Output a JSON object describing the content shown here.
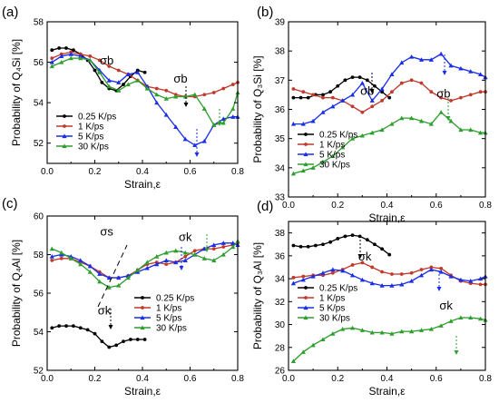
{
  "chart_data": [
    {
      "type": "line",
      "panel_label": "(a)",
      "xlabel": "Strain,ε",
      "ylabel": "Probability of Q₄Si [%]",
      "xlim": [
        0,
        0.8
      ],
      "ylim": [
        51,
        58
      ],
      "xticks": [
        0.0,
        0.2,
        0.4,
        0.6,
        0.8
      ],
      "xtick_labels": [
        "0.0",
        "0.2",
        "0.4",
        "0.6",
        "0.8"
      ],
      "yticks": [
        52,
        54,
        56,
        58
      ],
      "ytick_labels": [
        "52",
        "54",
        "56",
        "58"
      ],
      "legend_position": "bottom-left",
      "series": [
        {
          "name": "0.25 K/ps",
          "color": "#000000",
          "marker": "circle",
          "x": [
            0.02,
            0.05,
            0.08,
            0.11,
            0.14,
            0.17,
            0.2,
            0.23,
            0.26,
            0.29,
            0.32,
            0.35,
            0.38,
            0.41
          ],
          "y": [
            56.6,
            56.7,
            56.7,
            56.6,
            56.4,
            56.1,
            55.6,
            55.0,
            54.7,
            54.6,
            54.9,
            55.3,
            55.6,
            55.5
          ]
        },
        {
          "name": "1 K/ps",
          "color": "#c0392b",
          "marker": "circle",
          "x": [
            0.02,
            0.06,
            0.1,
            0.14,
            0.18,
            0.22,
            0.26,
            0.3,
            0.34,
            0.38,
            0.42,
            0.46,
            0.5,
            0.54,
            0.58,
            0.62,
            0.66,
            0.7,
            0.74,
            0.78,
            0.8
          ],
          "y": [
            56.2,
            56.4,
            56.5,
            56.4,
            56.3,
            56.1,
            55.8,
            55.6,
            55.4,
            55.1,
            54.8,
            54.7,
            54.6,
            54.4,
            54.3,
            54.3,
            54.4,
            54.5,
            54.7,
            54.9,
            55.0
          ]
        },
        {
          "name": "5 K/ps",
          "color": "#1a2ee8",
          "marker": "triangle",
          "x": [
            0.02,
            0.06,
            0.1,
            0.14,
            0.18,
            0.22,
            0.26,
            0.3,
            0.34,
            0.38,
            0.42,
            0.46,
            0.5,
            0.54,
            0.58,
            0.62,
            0.66,
            0.7,
            0.74,
            0.78,
            0.8
          ],
          "y": [
            56.0,
            56.3,
            56.4,
            56.3,
            56.1,
            55.6,
            55.1,
            55.0,
            55.4,
            55.5,
            54.8,
            54.0,
            53.4,
            52.8,
            52.2,
            51.9,
            52.1,
            52.9,
            53.2,
            53.3,
            53.3
          ]
        },
        {
          "name": "30 K/ps",
          "color": "#2e9e2e",
          "marker": "triangle",
          "x": [
            0.02,
            0.06,
            0.1,
            0.14,
            0.18,
            0.22,
            0.26,
            0.3,
            0.34,
            0.38,
            0.42,
            0.46,
            0.5,
            0.54,
            0.58,
            0.62,
            0.66,
            0.7,
            0.74,
            0.78,
            0.8
          ],
          "y": [
            55.8,
            56.0,
            56.2,
            56.2,
            56.1,
            55.5,
            54.8,
            54.6,
            54.9,
            55.1,
            54.7,
            54.4,
            54.2,
            54.3,
            54.3,
            54.4,
            53.7,
            52.9,
            53.0,
            53.7,
            54.5
          ]
        }
      ],
      "annotations": [
        {
          "text": "σb",
          "x": 0.25,
          "y": 55.9
        },
        {
          "text": "σb",
          "x": 0.56,
          "y": 55.0
        }
      ]
    },
    {
      "type": "line",
      "panel_label": "(b)",
      "xlabel": "Strain,ε",
      "ylabel": "Probability of Q₃Si [%]",
      "xlim": [
        0,
        0.8
      ],
      "ylim": [
        33,
        39
      ],
      "xticks": [
        0.0,
        0.2,
        0.4,
        0.6,
        0.8
      ],
      "xtick_labels": [
        "0.0",
        "0.2",
        "0.4",
        "0.6",
        "0.8"
      ],
      "yticks": [
        33,
        34,
        35,
        36,
        37,
        38,
        39
      ],
      "ytick_labels": [
        "33",
        "34",
        "35",
        "36",
        "37",
        "38",
        "39"
      ],
      "legend_position": "bottom-left",
      "series": [
        {
          "name": "0.25 K/ps",
          "color": "#000000",
          "marker": "circle",
          "x": [
            0.02,
            0.05,
            0.08,
            0.11,
            0.14,
            0.17,
            0.2,
            0.23,
            0.26,
            0.29,
            0.32,
            0.35,
            0.38,
            0.41
          ],
          "y": [
            36.4,
            36.4,
            36.4,
            36.5,
            36.5,
            36.6,
            36.8,
            37.0,
            37.1,
            37.1,
            37.0,
            36.8,
            36.6,
            36.4
          ]
        },
        {
          "name": "1 K/ps",
          "color": "#c0392b",
          "marker": "circle",
          "x": [
            0.02,
            0.06,
            0.1,
            0.14,
            0.18,
            0.22,
            0.26,
            0.3,
            0.34,
            0.38,
            0.42,
            0.46,
            0.5,
            0.54,
            0.58,
            0.62,
            0.66,
            0.7,
            0.74,
            0.78,
            0.8
          ],
          "y": [
            36.7,
            36.6,
            36.5,
            36.4,
            36.4,
            36.3,
            36.1,
            35.9,
            36.1,
            36.3,
            36.6,
            36.9,
            37.0,
            36.9,
            36.6,
            36.4,
            36.3,
            36.4,
            36.5,
            36.6,
            36.6
          ]
        },
        {
          "name": "5 K/ps",
          "color": "#1a2ee8",
          "marker": "triangle",
          "x": [
            0.02,
            0.06,
            0.1,
            0.14,
            0.18,
            0.22,
            0.26,
            0.3,
            0.34,
            0.38,
            0.42,
            0.46,
            0.5,
            0.54,
            0.58,
            0.62,
            0.66,
            0.7,
            0.74,
            0.78,
            0.8
          ],
          "y": [
            35.5,
            35.5,
            35.6,
            35.9,
            36.1,
            36.3,
            36.5,
            36.9,
            36.3,
            36.7,
            37.2,
            37.6,
            37.8,
            37.7,
            37.7,
            37.9,
            37.5,
            37.4,
            37.3,
            37.2,
            37.1
          ]
        },
        {
          "name": "30 K/ps",
          "color": "#2e9e2e",
          "marker": "triangle",
          "x": [
            0.02,
            0.06,
            0.1,
            0.14,
            0.18,
            0.22,
            0.26,
            0.3,
            0.34,
            0.38,
            0.42,
            0.46,
            0.5,
            0.54,
            0.58,
            0.62,
            0.66,
            0.7,
            0.74,
            0.78,
            0.8
          ],
          "y": [
            33.8,
            33.9,
            34.0,
            34.2,
            34.4,
            34.7,
            35.0,
            35.1,
            35.2,
            35.3,
            35.5,
            35.7,
            35.7,
            35.6,
            35.5,
            35.9,
            35.6,
            35.3,
            35.3,
            35.2,
            35.2
          ]
        }
      ],
      "annotations": [
        {
          "text": "σb",
          "x": 0.32,
          "y": 36.5
        },
        {
          "text": "σb",
          "x": 0.63,
          "y": 36.4
        }
      ]
    },
    {
      "type": "line",
      "panel_label": "(c)",
      "xlabel": "Strain,ε",
      "ylabel": "Probability of Q₄Al [%]",
      "xlim": [
        0,
        0.8
      ],
      "ylim": [
        52,
        60
      ],
      "xticks": [
        0.0,
        0.2,
        0.4,
        0.6,
        0.8
      ],
      "xtick_labels": [
        "0.0",
        "0.2",
        "0.4",
        "0.6",
        "0.8"
      ],
      "yticks": [
        52,
        54,
        56,
        58,
        60
      ],
      "ytick_labels": [
        "52",
        "54",
        "56",
        "58",
        "60"
      ],
      "legend_position": "center-right",
      "series": [
        {
          "name": "0.25 K/ps",
          "color": "#000000",
          "marker": "circle",
          "x": [
            0.02,
            0.05,
            0.08,
            0.11,
            0.14,
            0.17,
            0.2,
            0.23,
            0.26,
            0.29,
            0.32,
            0.35,
            0.38,
            0.41
          ],
          "y": [
            54.2,
            54.3,
            54.3,
            54.3,
            54.2,
            54.1,
            53.9,
            53.5,
            53.2,
            53.3,
            53.5,
            53.6,
            53.6,
            53.6
          ]
        },
        {
          "name": "1 K/ps",
          "color": "#c0392b",
          "marker": "circle",
          "x": [
            0.02,
            0.06,
            0.1,
            0.14,
            0.18,
            0.22,
            0.26,
            0.3,
            0.34,
            0.38,
            0.42,
            0.46,
            0.5,
            0.54,
            0.58,
            0.62,
            0.66,
            0.7,
            0.74,
            0.78,
            0.8
          ],
          "y": [
            57.7,
            57.8,
            57.8,
            57.6,
            57.4,
            57.1,
            56.8,
            56.8,
            56.9,
            57.2,
            57.5,
            57.6,
            57.5,
            57.6,
            57.9,
            58.2,
            58.3,
            58.3,
            58.4,
            58.5,
            58.6
          ]
        },
        {
          "name": "5 K/ps",
          "color": "#1a2ee8",
          "marker": "triangle",
          "x": [
            0.02,
            0.06,
            0.1,
            0.14,
            0.18,
            0.22,
            0.26,
            0.3,
            0.34,
            0.38,
            0.42,
            0.46,
            0.5,
            0.54,
            0.58,
            0.62,
            0.66,
            0.7,
            0.74,
            0.78,
            0.8
          ],
          "y": [
            57.9,
            58.0,
            57.9,
            57.7,
            57.4,
            57.0,
            56.8,
            56.8,
            56.9,
            57.1,
            57.3,
            57.5,
            57.7,
            57.6,
            57.7,
            58.0,
            58.3,
            58.5,
            58.6,
            58.6,
            58.5
          ]
        },
        {
          "name": "30 K/ps",
          "color": "#2e9e2e",
          "marker": "triangle",
          "x": [
            0.02,
            0.06,
            0.1,
            0.14,
            0.18,
            0.22,
            0.26,
            0.3,
            0.34,
            0.38,
            0.42,
            0.46,
            0.5,
            0.54,
            0.58,
            0.62,
            0.66,
            0.7,
            0.74,
            0.78,
            0.8
          ],
          "y": [
            58.3,
            58.1,
            57.8,
            57.5,
            57.1,
            56.6,
            56.3,
            56.4,
            56.8,
            57.2,
            57.6,
            57.9,
            58.1,
            58.2,
            58.1,
            58.0,
            57.8,
            57.7,
            58.0,
            58.4,
            58.7
          ]
        }
      ],
      "annotations": [
        {
          "text": "σs",
          "x": 0.25,
          "y": 59.0
        },
        {
          "text": "σk",
          "x": 0.58,
          "y": 58.7
        },
        {
          "text": "σk",
          "x": 0.24,
          "y": 54.9
        }
      ]
    },
    {
      "type": "line",
      "panel_label": "(d)",
      "xlabel": "Strain,ε",
      "ylabel": "Probability of Q₃Al [%]",
      "xlim": [
        0,
        0.8
      ],
      "ylim": [
        26,
        39
      ],
      "xticks": [
        0.0,
        0.2,
        0.4,
        0.6,
        0.8
      ],
      "xtick_labels": [
        "0.0",
        "0.2",
        "0.4",
        "0.6",
        "0.8"
      ],
      "yticks": [
        26,
        28,
        30,
        32,
        34,
        36,
        38
      ],
      "ytick_labels": [
        "26",
        "28",
        "30",
        "32",
        "34",
        "36",
        "38"
      ],
      "legend_position": "bottom-left",
      "series": [
        {
          "name": "0.25 K/ps",
          "color": "#000000",
          "marker": "circle",
          "x": [
            0.02,
            0.05,
            0.08,
            0.11,
            0.14,
            0.17,
            0.2,
            0.23,
            0.26,
            0.29,
            0.32,
            0.35,
            0.38,
            0.41
          ],
          "y": [
            36.9,
            36.8,
            36.8,
            36.9,
            37.0,
            37.2,
            37.5,
            37.7,
            37.8,
            37.7,
            37.4,
            37.0,
            36.6,
            36.1
          ]
        },
        {
          "name": "1 K/ps",
          "color": "#c0392b",
          "marker": "circle",
          "x": [
            0.02,
            0.06,
            0.1,
            0.14,
            0.18,
            0.22,
            0.26,
            0.3,
            0.34,
            0.38,
            0.42,
            0.46,
            0.5,
            0.54,
            0.58,
            0.62,
            0.66,
            0.7,
            0.74,
            0.78,
            0.8
          ],
          "y": [
            34.1,
            34.2,
            34.3,
            34.3,
            34.5,
            34.8,
            35.2,
            35.4,
            35.0,
            34.6,
            34.4,
            34.4,
            34.5,
            34.8,
            35.0,
            34.9,
            34.3,
            33.8,
            33.6,
            33.5,
            33.5
          ]
        },
        {
          "name": "5 K/ps",
          "color": "#1a2ee8",
          "marker": "triangle",
          "x": [
            0.02,
            0.06,
            0.1,
            0.14,
            0.18,
            0.22,
            0.26,
            0.3,
            0.34,
            0.38,
            0.42,
            0.46,
            0.5,
            0.54,
            0.58,
            0.62,
            0.66,
            0.7,
            0.74,
            0.78,
            0.8
          ],
          "y": [
            33.6,
            33.9,
            34.2,
            34.5,
            34.8,
            34.7,
            34.3,
            33.9,
            33.6,
            33.4,
            33.4,
            33.5,
            33.8,
            34.3,
            34.8,
            34.6,
            34.2,
            33.9,
            33.8,
            34.0,
            34.2
          ]
        },
        {
          "name": "30 K/ps",
          "color": "#2e9e2e",
          "marker": "triangle",
          "x": [
            0.02,
            0.06,
            0.1,
            0.14,
            0.18,
            0.22,
            0.26,
            0.3,
            0.34,
            0.38,
            0.42,
            0.46,
            0.5,
            0.54,
            0.58,
            0.62,
            0.66,
            0.7,
            0.74,
            0.78,
            0.8
          ],
          "y": [
            26.8,
            27.6,
            28.2,
            28.7,
            29.2,
            29.6,
            29.7,
            29.5,
            29.3,
            29.3,
            29.2,
            29.4,
            29.4,
            29.5,
            29.6,
            29.9,
            30.3,
            30.6,
            30.6,
            30.5,
            30.4
          ]
        }
      ],
      "annotations": [
        {
          "text": "σk",
          "x": 0.31,
          "y": 35.6
        },
        {
          "text": "σk",
          "x": 0.64,
          "y": 31.3
        }
      ]
    }
  ]
}
